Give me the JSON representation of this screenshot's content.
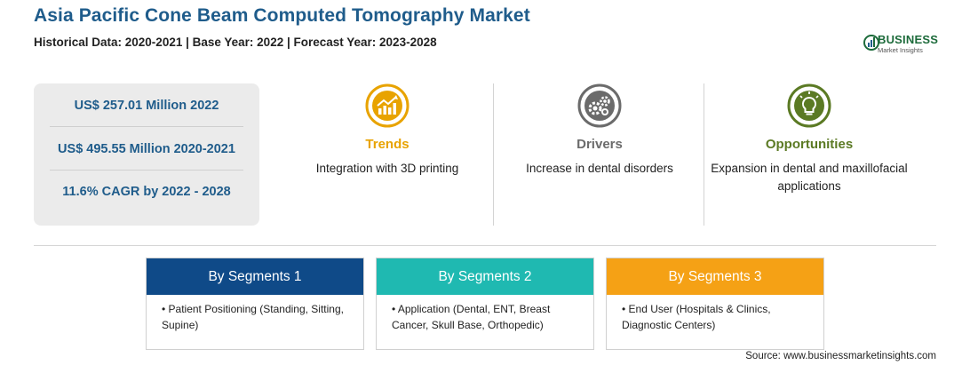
{
  "header": {
    "title": "Asia Pacific Cone Beam Computed Tomography Market",
    "subtitle": "Historical Data: 2020-2021 | Base Year: 2022 | Forecast Year: 2023-2028"
  },
  "logo": {
    "main_text": "BUSINESS",
    "sub_text": "Market Insights",
    "colors": {
      "green": "#1d6b3b",
      "blue": "#1f5c8b"
    }
  },
  "stats": [
    {
      "label": "US$ 257.01 Million 2022"
    },
    {
      "label": "US$ 495.55 Million 2020-2021"
    },
    {
      "label": "11.6% CAGR by 2022 - 2028"
    }
  ],
  "insights": {
    "trends": {
      "icon": "chart-growth-icon",
      "heading": "Trends",
      "text": "Integration with 3D printing",
      "color": "#e8a300"
    },
    "drivers": {
      "icon": "gears-icon",
      "heading": "Drivers",
      "text": "Increase in dental disorders",
      "color": "#6b6b6b"
    },
    "opportunities": {
      "icon": "lightbulb-icon",
      "heading": "Opportunities",
      "text": "Expansion in dental and maxillofacial applications",
      "color": "#5b7a24"
    }
  },
  "segments": [
    {
      "heading": "By Segments 1",
      "item": "• Patient Positioning (Standing, Sitting, Supine)",
      "color": "#0f4a88"
    },
    {
      "heading": "By Segments 2",
      "item": "• Application (Dental, ENT, Breast Cancer, Skull Base, Orthopedic)",
      "color": "#1fb9b1"
    },
    {
      "heading": "By Segments 3",
      "item": "• End User (Hospitals & Clinics, Diagnostic Centers)",
      "color": "#f5a115"
    }
  ],
  "footer": {
    "source": "Source: www.businessmarketinsights.com"
  }
}
